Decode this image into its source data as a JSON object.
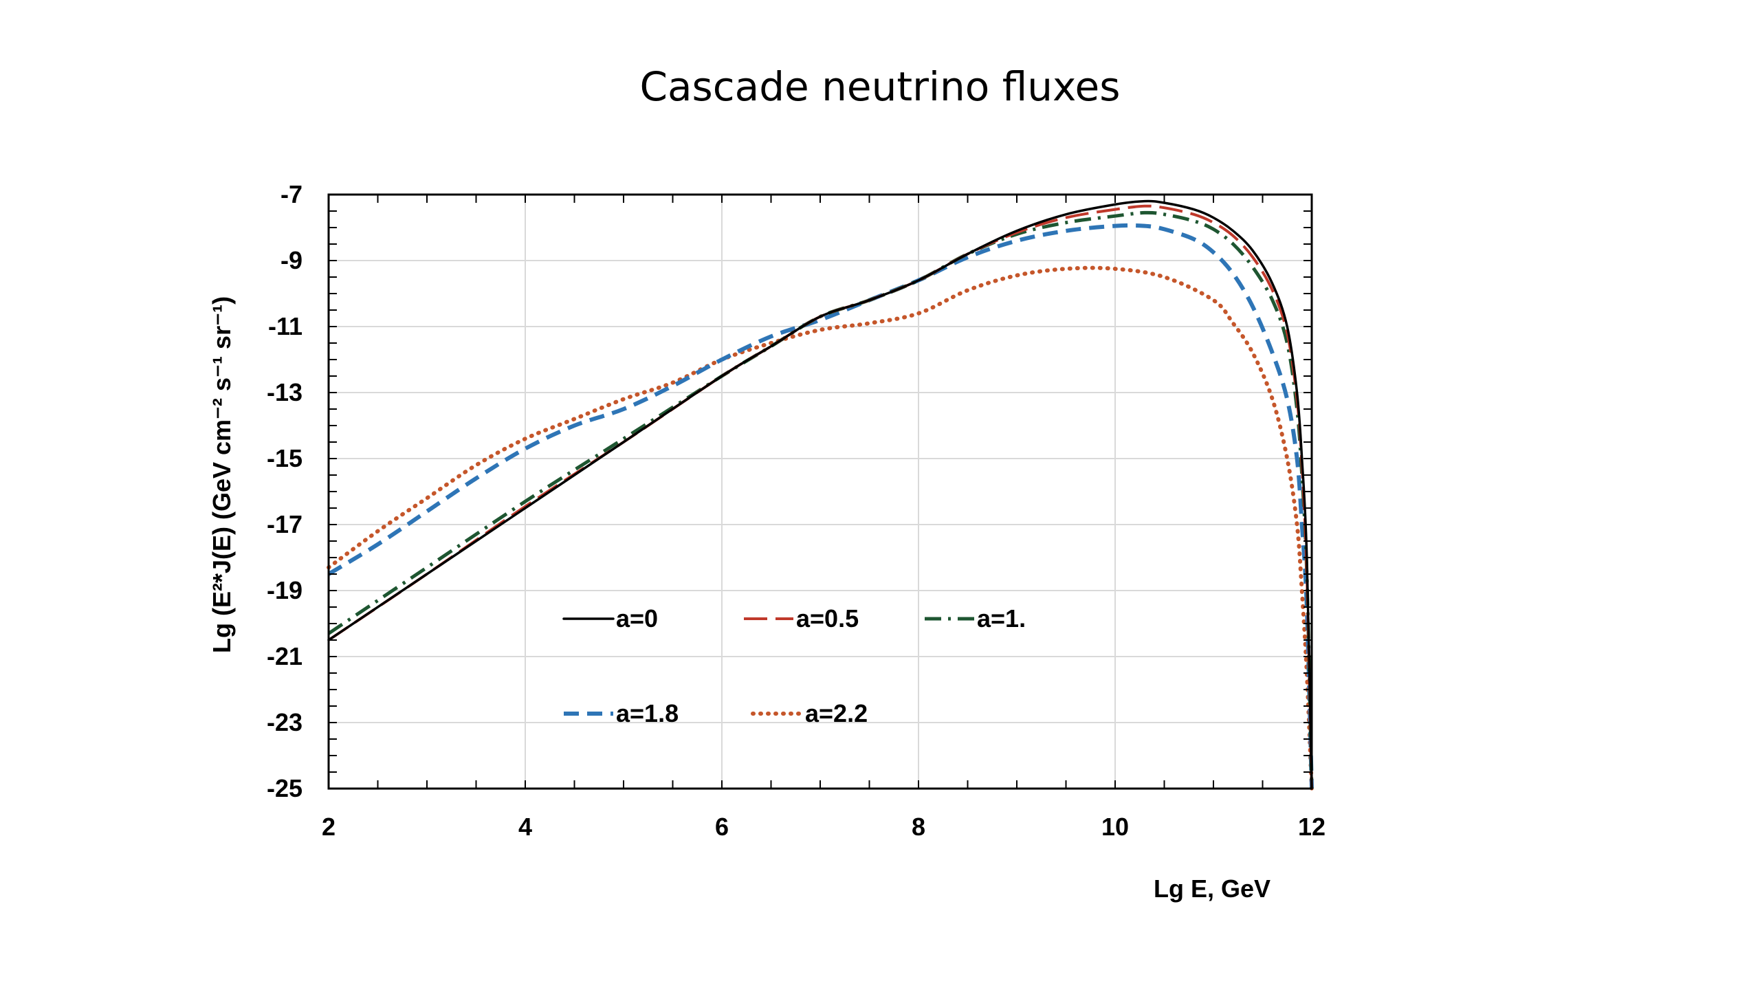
{
  "chart_data": {
    "type": "line",
    "title": "Cascade neutrino fluxes",
    "xlabel": "Lg E, GeV",
    "ylabel": "Lg (E²*J(E) (GeV cm⁻² s⁻¹ sr⁻¹)",
    "xlim": [
      2,
      12
    ],
    "ylim": [
      -25,
      -7
    ],
    "xticks": [
      2,
      4,
      6,
      8,
      10,
      12
    ],
    "yticks": [
      -7,
      -9,
      -11,
      -13,
      -15,
      -17,
      -19,
      -21,
      -23,
      -25
    ],
    "grid": true,
    "legend_position": "inside-lower-left",
    "series": [
      {
        "name": "a=0",
        "color": "#000000",
        "style": "solid",
        "x": [
          2,
          3,
          4,
          5,
          6,
          6.5,
          7,
          7.5,
          8,
          8.5,
          9,
          9.5,
          10,
          10.3,
          10.5,
          10.8,
          11,
          11.2,
          11.4,
          11.6,
          11.75,
          11.85,
          11.9,
          11.95,
          12
        ],
        "y": [
          -20.5,
          -18.5,
          -16.5,
          -14.5,
          -12.5,
          -11.6,
          -10.7,
          -10.2,
          -9.6,
          -8.8,
          -8.1,
          -7.6,
          -7.3,
          -7.2,
          -7.25,
          -7.45,
          -7.7,
          -8.1,
          -8.7,
          -9.7,
          -11,
          -13,
          -15,
          -18,
          -25
        ]
      },
      {
        "name": "a=0.5",
        "color": "#c0392b",
        "style": "long-dash",
        "x": [
          2,
          3,
          4,
          5,
          6,
          6.5,
          7,
          7.5,
          8,
          8.5,
          9,
          9.5,
          10,
          10.3,
          10.5,
          10.8,
          11,
          11.2,
          11.4,
          11.6,
          11.75,
          11.85,
          11.9,
          11.95,
          12
        ],
        "y": [
          -20.5,
          -18.5,
          -16.45,
          -14.5,
          -12.5,
          -11.6,
          -10.7,
          -10.2,
          -9.6,
          -8.8,
          -8.15,
          -7.7,
          -7.45,
          -7.35,
          -7.4,
          -7.6,
          -7.85,
          -8.25,
          -8.9,
          -9.9,
          -11.2,
          -13.2,
          -15.2,
          -18.5,
          -25
        ]
      },
      {
        "name": "a=1.",
        "color": "#1e5631",
        "style": "dash-dot",
        "x": [
          2,
          3,
          4,
          5,
          6,
          6.5,
          7,
          7.5,
          8,
          8.5,
          9,
          9.5,
          10,
          10.3,
          10.5,
          10.8,
          11,
          11.2,
          11.4,
          11.6,
          11.75,
          11.85,
          11.9,
          11.95,
          12
        ],
        "y": [
          -20.3,
          -18.3,
          -16.3,
          -14.4,
          -12.5,
          -11.6,
          -10.7,
          -10.2,
          -9.6,
          -8.8,
          -8.2,
          -7.85,
          -7.65,
          -7.55,
          -7.6,
          -7.8,
          -8.05,
          -8.5,
          -9.2,
          -10.2,
          -11.5,
          -13.5,
          -15.5,
          -18.5,
          -25
        ]
      },
      {
        "name": "a=1.8",
        "color": "#2e75b6",
        "style": "dash",
        "x": [
          2,
          2.5,
          3,
          3.5,
          4,
          4.5,
          5,
          5.5,
          6,
          6.5,
          7,
          7.5,
          8,
          8.5,
          9,
          9.5,
          10,
          10.3,
          10.5,
          10.8,
          11,
          11.2,
          11.4,
          11.6,
          11.75,
          11.85,
          11.9,
          11.95,
          12
        ],
        "y": [
          -18.5,
          -17.6,
          -16.6,
          -15.6,
          -14.7,
          -14.0,
          -13.5,
          -12.8,
          -12.0,
          -11.3,
          -10.8,
          -10.2,
          -9.6,
          -8.9,
          -8.4,
          -8.1,
          -7.95,
          -7.95,
          -8.05,
          -8.35,
          -8.75,
          -9.4,
          -10.4,
          -11.8,
          -13.2,
          -15,
          -17,
          -19.5,
          -25
        ]
      },
      {
        "name": "a=2.2",
        "color": "#c5562a",
        "style": "dot",
        "x": [
          2,
          2.5,
          3,
          3.5,
          4,
          4.5,
          5,
          5.5,
          6,
          6.5,
          7,
          7.5,
          8,
          8.5,
          9,
          9.5,
          10,
          10.5,
          11,
          11.2,
          11.4,
          11.6,
          11.75,
          11.85,
          11.9,
          11.95,
          12
        ],
        "y": [
          -18.3,
          -17.2,
          -16.2,
          -15.2,
          -14.4,
          -13.8,
          -13.2,
          -12.7,
          -12.0,
          -11.5,
          -11.1,
          -10.9,
          -10.6,
          -9.9,
          -9.45,
          -9.25,
          -9.25,
          -9.5,
          -10.2,
          -10.9,
          -11.8,
          -13.2,
          -15,
          -17,
          -19,
          -21.5,
          -25
        ]
      }
    ]
  }
}
